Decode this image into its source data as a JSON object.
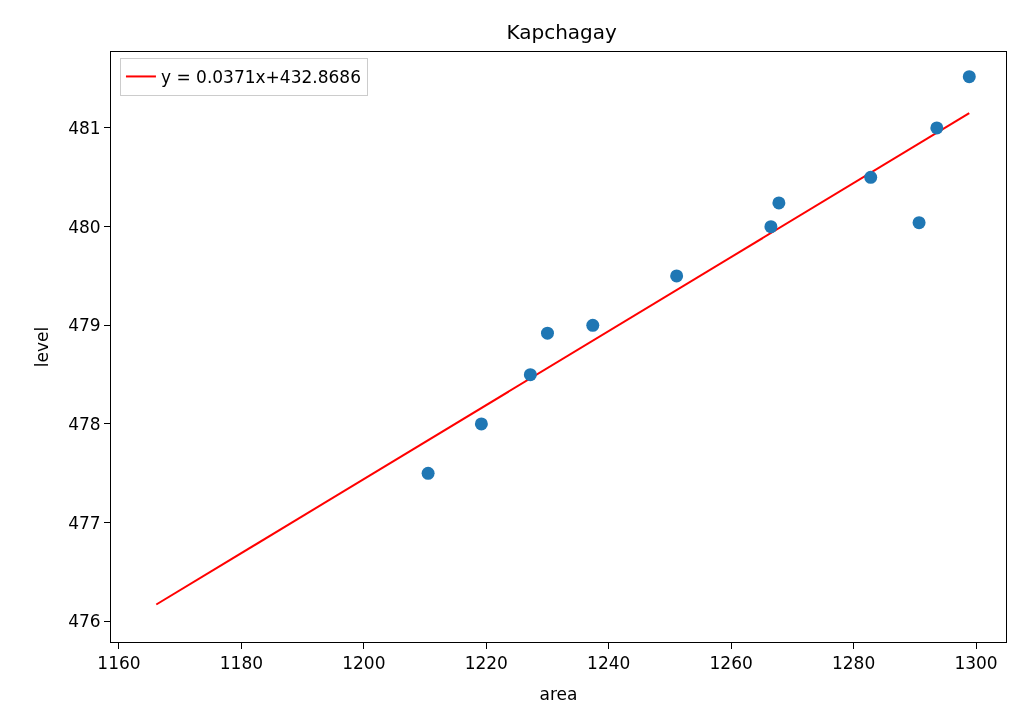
{
  "chart_data": {
    "type": "scatter",
    "title": "Kapchagay",
    "xlabel": "area",
    "ylabel": "level",
    "xlim": [
      1158.7,
      1304.9
    ],
    "xticks": [
      1160,
      1180,
      1200,
      1220,
      1240,
      1260,
      1280,
      1300
    ],
    "ylim": [
      475.79,
      481.77
    ],
    "yticks": [
      476,
      477,
      478,
      479,
      480,
      481
    ],
    "legend": "top left",
    "series": [
      {
        "type": "line",
        "name": "y = 0.0371x+432.8686",
        "color": "#ff0000",
        "x": [
          1166.1,
          1298.9
        ],
        "values": [
          476.17,
          481.15
        ],
        "line_style": "solid"
      },
      {
        "marker": "circle",
        "color": "#1f77b4",
        "x": [
          1210.5,
          1219.2,
          1227.2,
          1230.0,
          1237.4,
          1251.1,
          1266.5,
          1267.8,
          1282.8,
          1290.7,
          1293.6,
          1298.9
        ],
        "values": [
          477.5,
          478.0,
          478.5,
          478.92,
          479.0,
          479.5,
          480.0,
          480.24,
          480.5,
          480.04,
          481.0,
          481.52
        ]
      }
    ]
  }
}
